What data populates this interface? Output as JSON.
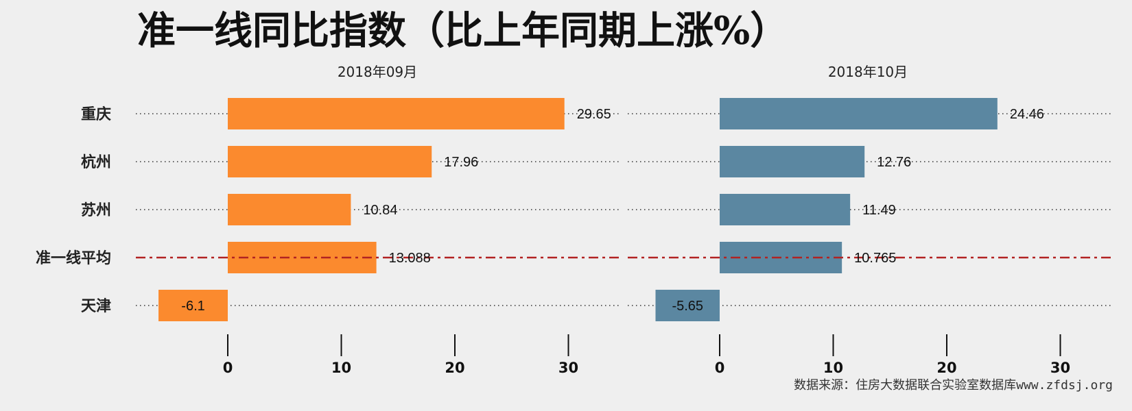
{
  "chart_data": {
    "type": "bar",
    "orientation": "horizontal",
    "title": "准一线同比指数（比上年同期上涨%）",
    "categories": [
      "重庆",
      "杭州",
      "苏州",
      "准一线平均",
      "天津"
    ],
    "panels": [
      {
        "name": "2018年09月",
        "values": [
          29.65,
          17.96,
          10.84,
          13.088,
          -6.1
        ],
        "color": "#fb8a2e"
      },
      {
        "name": "2018年10月",
        "values": [
          24.46,
          12.76,
          11.49,
          10.765,
          -5.65
        ],
        "color": "#5b87a1"
      }
    ],
    "value_labels": [
      [
        "29.65",
        "17.96",
        "10.84",
        "13.088",
        "-6.1"
      ],
      [
        "24.46",
        "12.76",
        "11.49",
        "10.765",
        "-5.65"
      ]
    ],
    "xticks": [
      0,
      10,
      20,
      30
    ],
    "xtick_labels": [
      "0",
      "10",
      "20",
      "30"
    ],
    "xlim": [
      -6.5,
      35
    ],
    "average_category": "准一线平均",
    "average_line_color": "#b22222",
    "grid": "dotted horizontal guide lines",
    "source": "数据来源：住房大数据联合实验室数据库www.zfdsj.org"
  }
}
